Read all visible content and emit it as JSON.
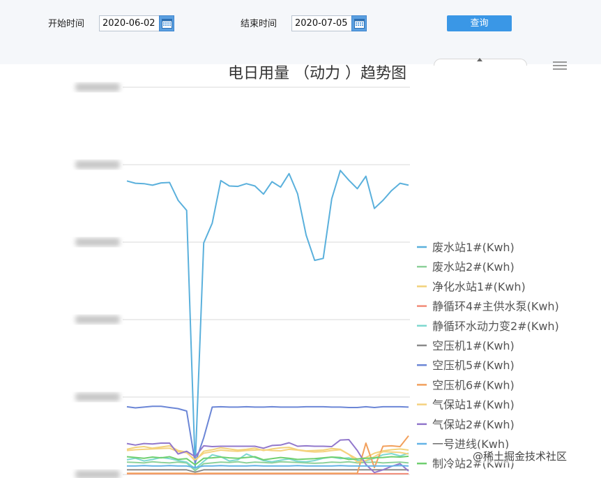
{
  "filter": {
    "start_label": "开始时间",
    "start_value": "2020-06-02",
    "end_label": "结束时间",
    "end_value": "2020-07-05",
    "query_label": "查询"
  },
  "watermark": "@稀土掘金技术社区",
  "chart_data": {
    "type": "line",
    "title": "电日用量 （动力 ）趋势图",
    "xlabel": "",
    "ylabel": "",
    "ylim": [
      0,
      100
    ],
    "x_count": 34,
    "legend_position": "right",
    "grid": true,
    "series": [
      {
        "name": "废水站1#(Kwh)",
        "color": "#5ab0dc",
        "values": [
          75.8,
          75.2,
          75.1,
          74.7,
          75.3,
          75.4,
          70.8,
          68.2,
          2,
          59.8,
          64.9,
          75.9,
          74.5,
          74.4,
          75.1,
          74.5,
          72.4,
          75.6,
          74.2,
          77.7,
          72.5,
          61.8,
          55.3,
          55.8,
          71.2,
          78.5,
          76,
          73.8,
          77,
          68.7,
          70.8,
          73.3,
          75.2,
          74.7
        ]
      },
      {
        "name": "废水站2#(Kwh)",
        "color": "#8dd19a",
        "values": [
          3.2,
          3.1,
          3,
          3.3,
          3.1,
          3,
          3.2,
          3,
          1,
          2.8,
          3,
          3.2,
          3.1,
          3.3,
          3,
          3.2,
          3.1,
          3,
          3.3,
          3.2,
          3.1,
          3,
          2.9,
          3,
          3.2,
          3.1,
          3.3,
          3,
          3.1,
          3.2,
          3,
          3.1,
          3.2,
          3
        ]
      },
      {
        "name": "净化水站1#(Kwh)",
        "color": "#f2d27a",
        "values": [
          6.5,
          7,
          7.2,
          6.8,
          7.1,
          7.4,
          6.2,
          5.8,
          3.5,
          6,
          6.4,
          6.9,
          6.6,
          6.3,
          6.5,
          6.8,
          6.2,
          6.6,
          6.9,
          7,
          6.4,
          6.1,
          6.2,
          6.3,
          6.7,
          6.5,
          5.2,
          4,
          4.4,
          5.5,
          6.1,
          6.4,
          6.6,
          6.3
        ]
      },
      {
        "name": "静循环4#主供水泵(Kwh)",
        "color": "#f28c78",
        "values": [
          0.2,
          0.2,
          0.2,
          0.2,
          0.2,
          0.2,
          0.2,
          0.2,
          0.1,
          0.2,
          0.2,
          0.2,
          0.2,
          0.2,
          0.2,
          0.2,
          0.2,
          0.2,
          0.2,
          0.2,
          0.2,
          0.2,
          0.2,
          0.2,
          0.2,
          0.2,
          0.2,
          0.2,
          0.2,
          0.2,
          0.2,
          0.2,
          0.2,
          0.2
        ]
      },
      {
        "name": "静循环水动力变2#(Kwh)",
        "color": "#7dd8cf",
        "values": [
          3.8,
          4.2,
          3.5,
          3.9,
          4.4,
          4.1,
          3.6,
          3.2,
          1.5,
          3.4,
          5.1,
          4.6,
          3.5,
          3.8,
          5.3,
          4.4,
          3.6,
          3.3,
          3.7,
          4,
          3.4,
          3.3,
          3.6,
          4.2,
          4.5,
          4.1,
          4.3,
          3.6,
          3.5,
          4.2,
          5.1,
          5.4,
          4.8,
          5.5
        ]
      },
      {
        "name": "空压机1#(Kwh)",
        "color": "#8a8a8a",
        "values": [
          1.2,
          1.2,
          1.2,
          1.2,
          1.2,
          1.2,
          1.2,
          1.2,
          0.6,
          1.2,
          1.2,
          1.2,
          1.2,
          1.2,
          1.2,
          1.2,
          1.2,
          1.2,
          1.2,
          1.2,
          1.2,
          1.2,
          1.2,
          1.2,
          1.2,
          1.2,
          1.2,
          1.2,
          1.2,
          1.2,
          1.2,
          1.2,
          1.2,
          1.2
        ]
      },
      {
        "name": "空压机5#(Kwh)",
        "color": "#6b86d6",
        "values": [
          17.5,
          17.2,
          17.4,
          17.6,
          17.6,
          17.3,
          17,
          16.4,
          3,
          9.5,
          17.4,
          17.5,
          17.4,
          17.4,
          17.5,
          17.4,
          17.4,
          17.5,
          17.4,
          17.4,
          17.4,
          17.5,
          17.5,
          17.5,
          17.4,
          17.4,
          17.3,
          17.3,
          17.5,
          17.3,
          17.5,
          17.5,
          17.5,
          17.4
        ]
      },
      {
        "name": "空压机6#(Kwh)",
        "color": "#f2a05c",
        "values": [
          0.3,
          0.3,
          0.3,
          0.3,
          0.3,
          0.3,
          0.3,
          0.3,
          0.2,
          0.3,
          0.3,
          0.3,
          0.3,
          0.3,
          0.3,
          0.3,
          0.3,
          0.3,
          0.3,
          0.3,
          0.3,
          0.3,
          0.3,
          0.3,
          0.3,
          0.3,
          0.3,
          0.3,
          8.1,
          1.8,
          7.3,
          7.4,
          7.2,
          10
        ]
      },
      {
        "name": "气保站1#(Kwh)",
        "color": "#f5d27f",
        "values": [
          6.2,
          6.4,
          6.5,
          6.6,
          6.7,
          6.8,
          5.9,
          5.6,
          3.8,
          5.5,
          5.9,
          6.3,
          6.1,
          6,
          6.2,
          6.3,
          6.4,
          6.2,
          6.1,
          6.5,
          6.3,
          6,
          5.8,
          5.9,
          6.2,
          6.4,
          5.2,
          3.2,
          3.6,
          4.6,
          5.9,
          5.8,
          5.7,
          5.3
        ]
      },
      {
        "name": "气保站2#(Kwh)",
        "color": "#9278cc",
        "values": [
          8,
          7.6,
          8,
          7.9,
          8.1,
          8.1,
          5.3,
          6,
          4.6,
          7.4,
          7.2,
          7.3,
          7.3,
          7.3,
          7.3,
          7.3,
          6.8,
          7.5,
          7.6,
          8.2,
          7.3,
          7.4,
          7.3,
          7.3,
          7.2,
          8.9,
          9,
          6.2,
          2.6,
          0.5,
          1.2,
          2.1,
          2.8,
          0.9
        ]
      },
      {
        "name": "一号进线(Kwh)",
        "color": "#63b3e6",
        "values": [
          2.2,
          2.2,
          2.3,
          2.2,
          2.2,
          2.3,
          2.2,
          2.2,
          1.8,
          2.2,
          2.2,
          2.3,
          2.2,
          2.2,
          2.2,
          2.3,
          2.2,
          2.2,
          2.2,
          2.2,
          2.3,
          2.2,
          2.2,
          2.2,
          2.2,
          2.3,
          2.2,
          2.2,
          2.2,
          2.2,
          2.2,
          2.2,
          2.3,
          2.2
        ]
      },
      {
        "name": "制冷站2#(Kwh)",
        "color": "#6fcf6f",
        "values": [
          4.6,
          4.4,
          4.2,
          4.5,
          4.3,
          4.6,
          3.9,
          4.1,
          2.5,
          4.2,
          4.3,
          4.5,
          4.3,
          4.2,
          4.4,
          4.6,
          3.8,
          4.1,
          4.4,
          4.2,
          3.9,
          4,
          4.1,
          4.3,
          4.5,
          4.4,
          3.9,
          4,
          4.2,
          4.3,
          4.4,
          4.6,
          4.5,
          4.7
        ]
      }
    ]
  }
}
